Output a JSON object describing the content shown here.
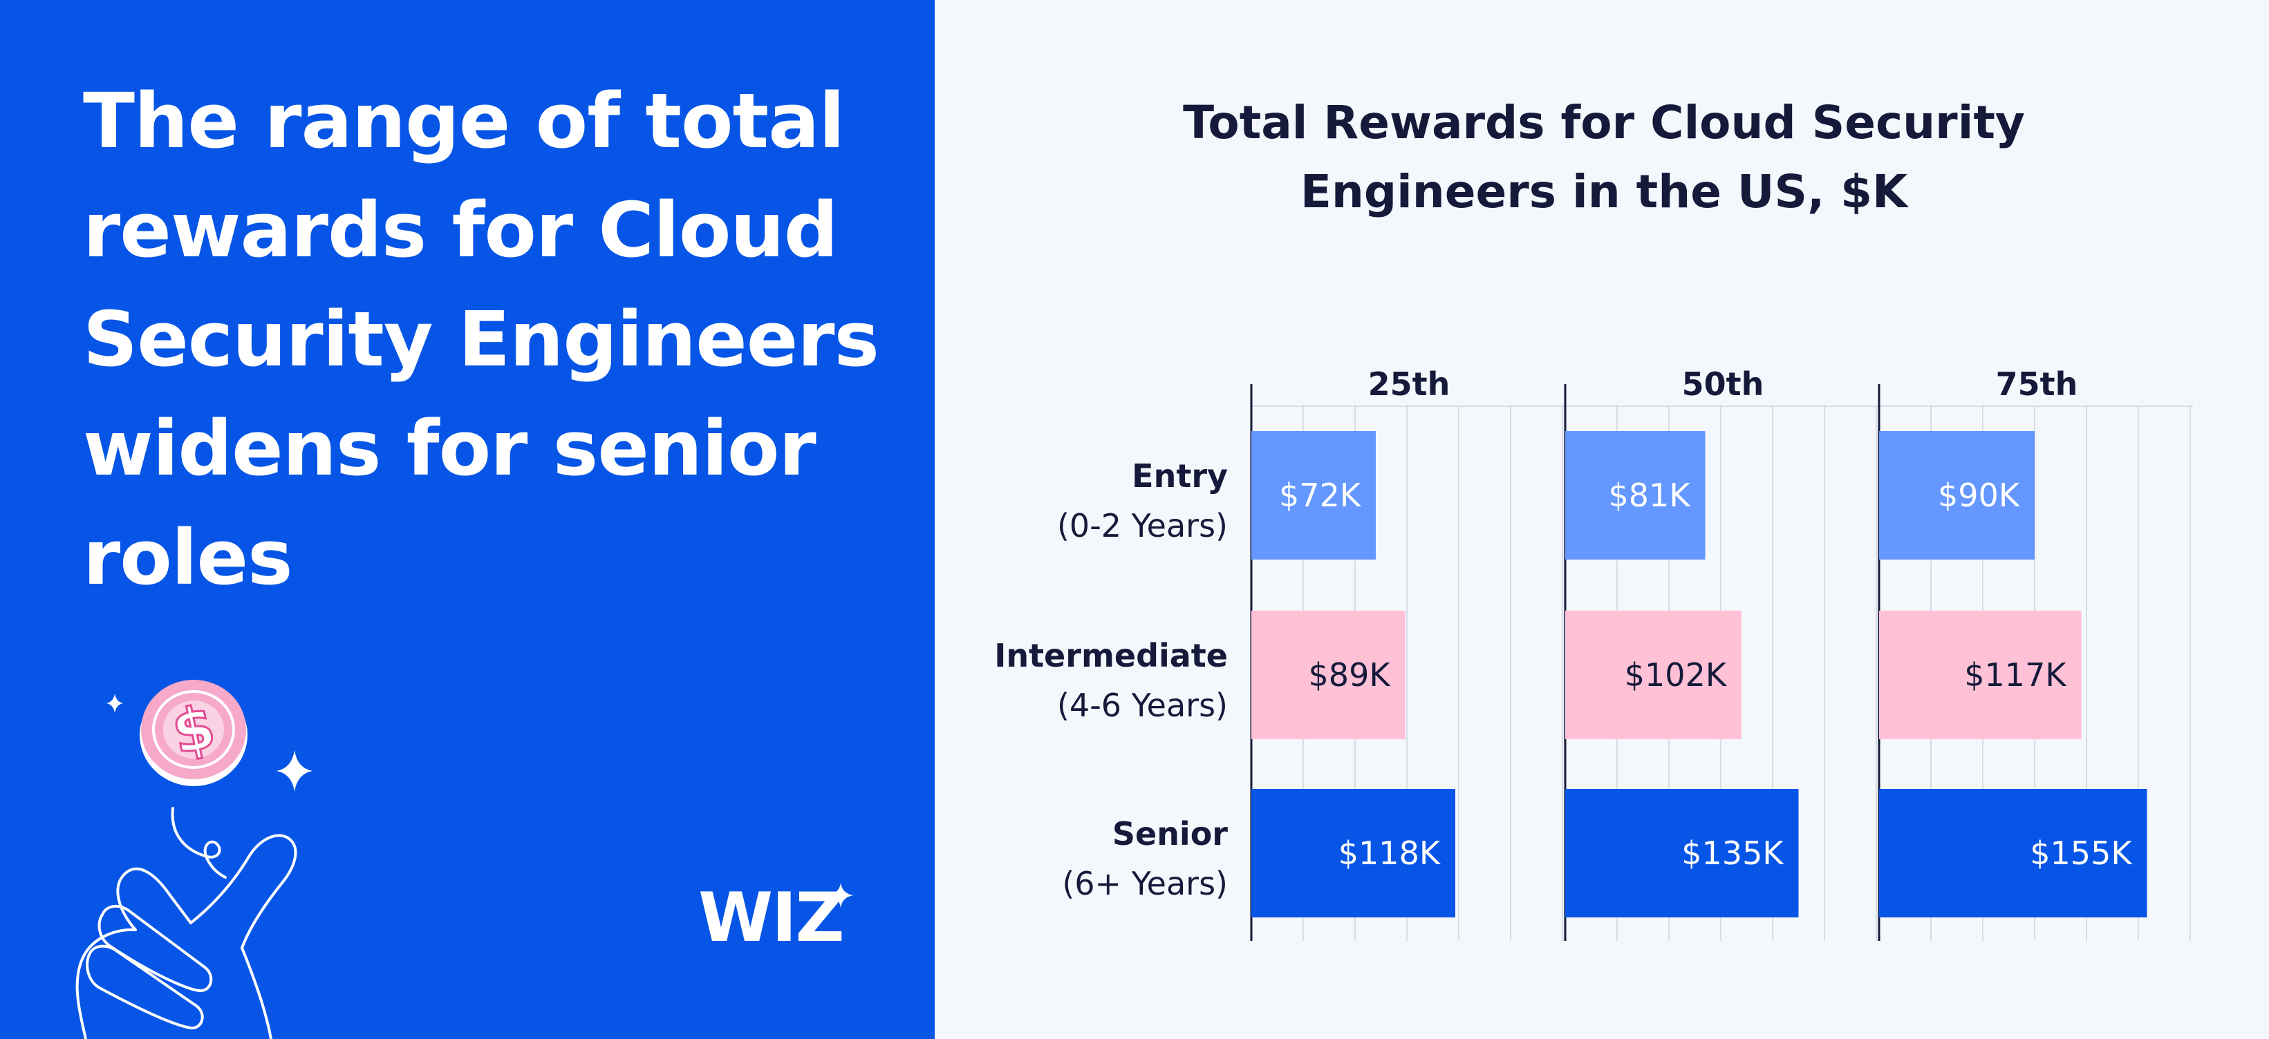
{
  "headline": "The range of total rewards for Cloud Security Engineers widens for senior roles",
  "logo_text": "WIZ",
  "icons": {
    "coin": "dollar-coin-icon",
    "hand": "hand-flick-icon",
    "sparkle": "sparkle-icon"
  },
  "colors": {
    "panel_blue": "#0655e6",
    "background": "#f4f7fc",
    "entry": "#6497ff",
    "intermediate": "#ffc1d6",
    "senior": "#0655e6",
    "text_dark": "#151a3a"
  },
  "chart_data": {
    "type": "bar",
    "orientation": "horizontal",
    "title": "Total Rewards for Cloud Security Engineers in the US, $K",
    "panels": [
      "25th",
      "50th",
      "75th"
    ],
    "categories": [
      {
        "name": "Entry",
        "sub": "(0-2 Years)"
      },
      {
        "name": "Intermediate",
        "sub": "(4-6 Years)"
      },
      {
        "name": "Senior",
        "sub": "(6+ Years)"
      }
    ],
    "series": [
      {
        "panel": "25th",
        "values": [
          72,
          89,
          118
        ],
        "labels": [
          "$72K",
          "$89K",
          "$118K"
        ]
      },
      {
        "panel": "50th",
        "values": [
          81,
          102,
          135
        ],
        "labels": [
          "$81K",
          "$102K",
          "$135K"
        ]
      },
      {
        "panel": "75th",
        "values": [
          90,
          117,
          155
        ],
        "labels": [
          "$90K",
          "$117K",
          "$155K"
        ]
      }
    ],
    "xlim": [
      0,
      180
    ],
    "grid": true,
    "legend": "none"
  }
}
